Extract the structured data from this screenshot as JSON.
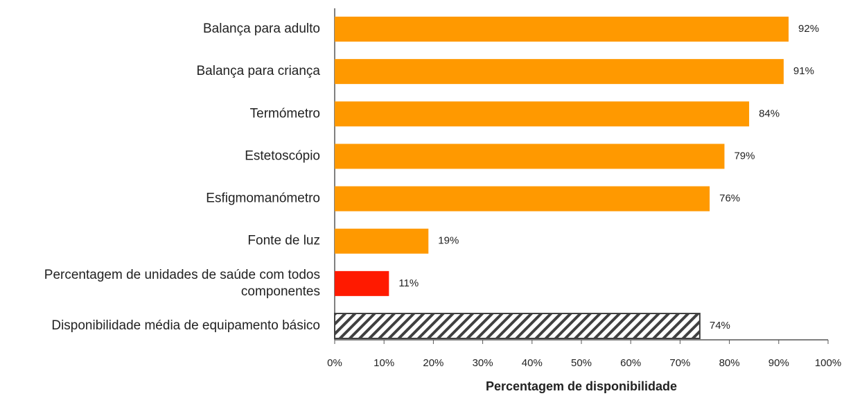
{
  "chart_data": {
    "type": "barh",
    "categories": [
      "Balança para adulto",
      "Balança para criança",
      "Termómetro",
      "Estetoscópio",
      "Esfigmomanómetro",
      "Fonte de luz",
      "Percentagem de unidades de saúde com todos componentes",
      "Disponibilidade média de equipamento básico"
    ],
    "values": [
      92,
      91,
      84,
      79,
      76,
      19,
      11,
      74
    ],
    "value_labels": [
      "92%",
      "91%",
      "84%",
      "79%",
      "76%",
      "19%",
      "11%",
      "74%"
    ],
    "colors": [
      "#ff9900",
      "#ff9900",
      "#ff9900",
      "#ff9900",
      "#ff9900",
      "#ff9900",
      "#ff1a00",
      "#404040"
    ],
    "bar_styles": [
      "solid",
      "solid",
      "solid",
      "solid",
      "solid",
      "solid",
      "solid",
      "hatched"
    ],
    "xlabel": "Percentagem de disponibilidade",
    "xlim": [
      0,
      100
    ],
    "xticks": [
      {
        "value": 0,
        "label": "0%"
      },
      {
        "value": 10,
        "label": "10%"
      },
      {
        "value": 20,
        "label": "20%"
      },
      {
        "value": 30,
        "label": "30%"
      },
      {
        "value": 40,
        "label": "40%"
      },
      {
        "value": 50,
        "label": "50%"
      },
      {
        "value": 60,
        "label": "60%"
      },
      {
        "value": 70,
        "label": "70%"
      },
      {
        "value": 80,
        "label": "80%"
      },
      {
        "value": 90,
        "label": "90%"
      },
      {
        "value": 100,
        "label": "100%"
      }
    ],
    "grid": false
  }
}
